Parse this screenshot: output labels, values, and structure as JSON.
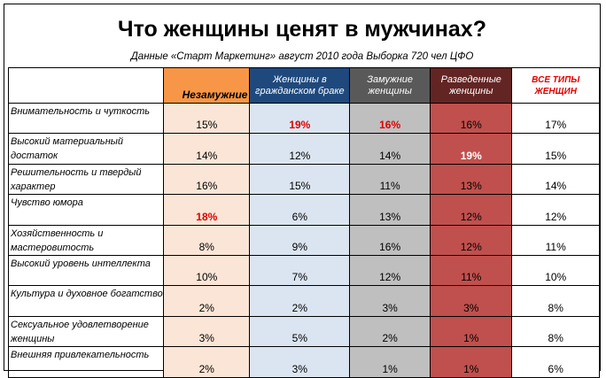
{
  "chart_data": {
    "type": "table",
    "title": "Что женщины ценят в мужчинах?",
    "subtitle": "Данные «Старт Маркетинг» август 2010 года Выборка 720 чел ЦФО",
    "columns": [
      "Незамужние",
      "Женщины в гражданском браке",
      "Замужние женщины",
      "Разведенные женщины",
      "ВСЕ ТИПЫ ЖЕНЩИН"
    ],
    "column_colors": [
      "#f79646",
      "#1f497d",
      "#595959",
      "#632523",
      "#ffffff"
    ],
    "cell_colors": [
      "#fbe5d6",
      "#dbe5f1",
      "#bfbfbf",
      "#c0504d",
      "#ffffff"
    ],
    "highlight_color": "#e00000",
    "rows": [
      {
        "label": "Внимательность и чуткость",
        "values": [
          "15%",
          "19%",
          "16%",
          "16%",
          "17%"
        ],
        "highlight": [
          1,
          2
        ]
      },
      {
        "label": "Высокий материальный достаток",
        "values": [
          "14%",
          "12%",
          "14%",
          "19%",
          "15%"
        ],
        "highlight": [
          3
        ]
      },
      {
        "label": "Решительность и твердый характер",
        "values": [
          "16%",
          "15%",
          "11%",
          "13%",
          "14%"
        ],
        "highlight": []
      },
      {
        "label": "Чувство юмора",
        "values": [
          "18%",
          "6%",
          "13%",
          "12%",
          "12%"
        ],
        "highlight": [
          0
        ]
      },
      {
        "label": "Хозяйственность и мастеровитость",
        "values": [
          "8%",
          "9%",
          "16%",
          "12%",
          "11%"
        ],
        "highlight": []
      },
      {
        "label": "Высокий уровень интеллекта",
        "values": [
          "10%",
          "7%",
          "12%",
          "11%",
          "10%"
        ],
        "highlight": []
      },
      {
        "label": "Культура и духовное богатство",
        "values": [
          "2%",
          "2%",
          "3%",
          "3%",
          "8%"
        ],
        "highlight": []
      },
      {
        "label": "Сексуальное удовлетворение женщины",
        "values": [
          "3%",
          "5%",
          "2%",
          "1%",
          "8%"
        ],
        "highlight": []
      },
      {
        "label": "Внешняя привлекательность",
        "values": [
          "2%",
          "3%",
          "1%",
          "1%",
          "6%"
        ],
        "highlight": []
      }
    ]
  }
}
